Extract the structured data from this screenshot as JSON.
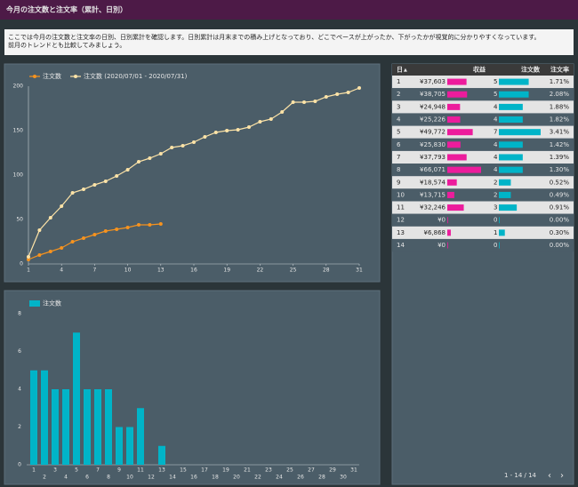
{
  "header": {
    "title": "今月の注文数と注文率（累計、日別）"
  },
  "description": {
    "lines": [
      "ここでは今月の注文数と注文率の日別、日別累計を確認します。日別累計は月末までの積み上げとなっており、どこでペースが上がったか、下がったかが視覚的に分かりやすくなっています。",
      "前月のトレンドとも比較してみましょう。"
    ]
  },
  "chart_data": [
    {
      "type": "line",
      "legend": "top-left",
      "x": [
        1,
        2,
        3,
        4,
        5,
        6,
        7,
        8,
        9,
        10,
        11,
        12,
        13,
        14,
        15,
        16,
        17,
        18,
        19,
        20,
        21,
        22,
        23,
        24,
        25,
        26,
        27,
        28,
        29,
        30,
        31
      ],
      "xlim": [
        1,
        31
      ],
      "xticks": [
        1,
        4,
        7,
        10,
        13,
        16,
        19,
        22,
        25,
        28,
        31
      ],
      "ylim": [
        0,
        200
      ],
      "yticks": [
        0,
        50,
        100,
        150,
        200
      ],
      "series": [
        {
          "name": "注文数",
          "color": "#f7931e",
          "values": [
            5,
            10,
            14,
            18,
            25,
            29,
            33,
            37,
            39,
            41,
            44,
            44,
            45,
            null,
            null,
            null,
            null,
            null,
            null,
            null,
            null,
            null,
            null,
            null,
            null,
            null,
            null,
            null,
            null,
            null,
            null
          ]
        },
        {
          "name": "注文数 (2020/07/01 - 2020/07/31)",
          "color": "#fde3a7",
          "values": [
            8,
            38,
            52,
            65,
            80,
            84,
            89,
            93,
            99,
            106,
            115,
            119,
            124,
            131,
            133,
            137,
            143,
            148,
            150,
            151,
            154,
            160,
            163,
            171,
            182,
            182,
            183,
            188,
            191,
            193,
            198
          ]
        }
      ]
    },
    {
      "type": "bar",
      "legend": "top-left",
      "categories": [
        1,
        2,
        3,
        4,
        5,
        6,
        7,
        8,
        9,
        10,
        11,
        12,
        13,
        14,
        15,
        16,
        17,
        18,
        19,
        20,
        21,
        22,
        23,
        24,
        25,
        26,
        27,
        28,
        29,
        30,
        31
      ],
      "ylim": [
        0,
        8
      ],
      "yticks": [
        0,
        2,
        4,
        6,
        8
      ],
      "series": [
        {
          "name": "注文数",
          "color": "#00b4c8",
          "values": [
            5,
            5,
            4,
            4,
            7,
            4,
            4,
            4,
            2,
            2,
            3,
            0,
            1,
            0,
            null,
            null,
            null,
            null,
            null,
            null,
            null,
            null,
            null,
            null,
            null,
            null,
            null,
            null,
            null,
            null,
            null
          ]
        }
      ]
    }
  ],
  "table": {
    "columns": [
      "日",
      "収益",
      "注文数",
      "注文率"
    ],
    "revenue_color": "#ec1c9c",
    "orders_color": "#00b4c8",
    "rows": [
      [
        1,
        {
          "value": 37603,
          "label": "¥37,603"
        },
        5,
        "1.71%"
      ],
      [
        2,
        {
          "value": 38705,
          "label": "¥38,705"
        },
        5,
        "2.08%"
      ],
      [
        3,
        {
          "value": 24948,
          "label": "¥24,948"
        },
        4,
        "1.88%"
      ],
      [
        4,
        {
          "value": 25226,
          "label": "¥25,226"
        },
        4,
        "1.82%"
      ],
      [
        5,
        {
          "value": 49772,
          "label": "¥49,772"
        },
        7,
        "3.41%"
      ],
      [
        6,
        {
          "value": 25830,
          "label": "¥25,830"
        },
        4,
        "1.42%"
      ],
      [
        7,
        {
          "value": 37793,
          "label": "¥37,793"
        },
        4,
        "1.39%"
      ],
      [
        8,
        {
          "value": 66071,
          "label": "¥66,071"
        },
        4,
        "1.30%"
      ],
      [
        9,
        {
          "value": 18574,
          "label": "¥18,574"
        },
        2,
        "0.52%"
      ],
      [
        10,
        {
          "value": 13715,
          "label": "¥13,715"
        },
        2,
        "0.49%"
      ],
      [
        11,
        {
          "value": 32246,
          "label": "¥32,246"
        },
        3,
        "0.91%"
      ],
      [
        12,
        {
          "value": 0,
          "label": "¥0"
        },
        0,
        "0.00%"
      ],
      [
        13,
        {
          "value": 6868,
          "label": "¥6,868"
        },
        1,
        "0.30%"
      ],
      [
        14,
        {
          "value": 0,
          "label": "¥0"
        },
        0,
        "0.00%"
      ]
    ],
    "pagination": "1 - 14 / 14"
  }
}
